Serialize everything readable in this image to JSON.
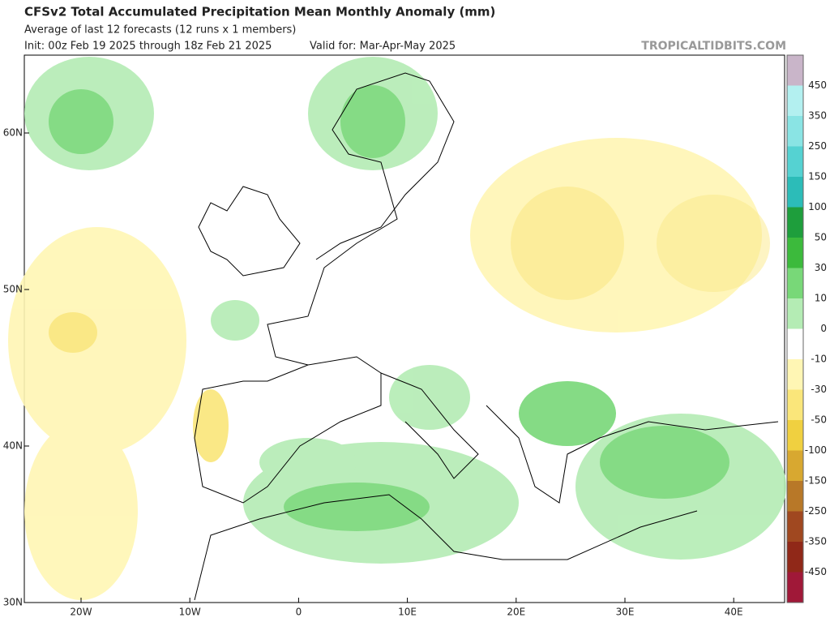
{
  "header": {
    "title": "CFSv2 Total Accumulated Precipitation Mean Monthly Anomaly (mm)",
    "subtitle": "Average of last 12 forecasts (12 runs x 1 members)",
    "init": "Init: 00z Feb 19 2025 through 18z Feb 21 2025",
    "valid": "Valid for: Mar-Apr-May 2025",
    "watermark": "TROPICALTIDBITS.COM"
  },
  "map": {
    "lat_labels": [
      "60N",
      "50N",
      "40N",
      "30N"
    ],
    "lon_labels": [
      "20W",
      "10W",
      "0",
      "10E",
      "20E",
      "30E",
      "40E"
    ]
  },
  "colorbar": {
    "labels": [
      "450",
      "350",
      "250",
      "150",
      "100",
      "50",
      "30",
      "10",
      "0",
      "-10",
      "-30",
      "-50",
      "-100",
      "-150",
      "-250",
      "-350",
      "-450"
    ],
    "colors": [
      "#c9b5c9",
      "#b3f0f0",
      "#8ae4e4",
      "#55d2d2",
      "#2cbcb8",
      "#1e9e3c",
      "#3cba3c",
      "#78d878",
      "#b4ecb4",
      "#ffffff",
      "#fff6b4",
      "#fae67a",
      "#f0d040",
      "#d8a830",
      "#b87828",
      "#a04820",
      "#902818",
      "#a01838",
      "#e00060"
    ]
  }
}
